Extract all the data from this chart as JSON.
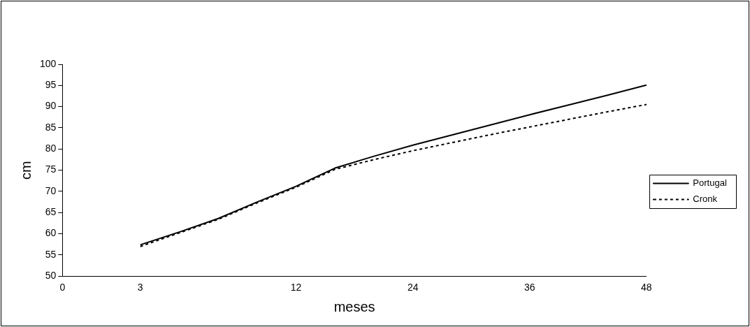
{
  "chart_data": {
    "type": "line",
    "xlabel": "meses",
    "ylabel": "cm",
    "categories": [
      "0",
      null,
      "3",
      null,
      null,
      null,
      "12",
      null,
      null,
      "24",
      null,
      null,
      "36",
      null,
      null,
      "48"
    ],
    "series": [
      {
        "name": "Portugal",
        "color": "#000000",
        "line_style": "solid",
        "values": [
          null,
          null,
          57.4,
          60.4,
          63.6,
          67.5,
          71.2,
          75.5,
          78.3,
          80.9,
          83.3,
          85.7,
          88.1,
          90.4,
          92.7,
          95.1
        ]
      },
      {
        "name": "Cronk",
        "color": "#000000",
        "line_style": "dotted",
        "values": [
          null,
          null,
          57.0,
          60.2,
          63.4,
          67.3,
          71.0,
          75.2,
          77.5,
          79.6,
          81.5,
          83.4,
          85.2,
          87.0,
          88.8,
          90.5
        ]
      }
    ],
    "ylim": [
      50,
      100
    ],
    "yticks": [
      50,
      55,
      60,
      65,
      70,
      75,
      80,
      85,
      90,
      95,
      100
    ],
    "grid": false,
    "legend": "right",
    "marker": "none"
  }
}
